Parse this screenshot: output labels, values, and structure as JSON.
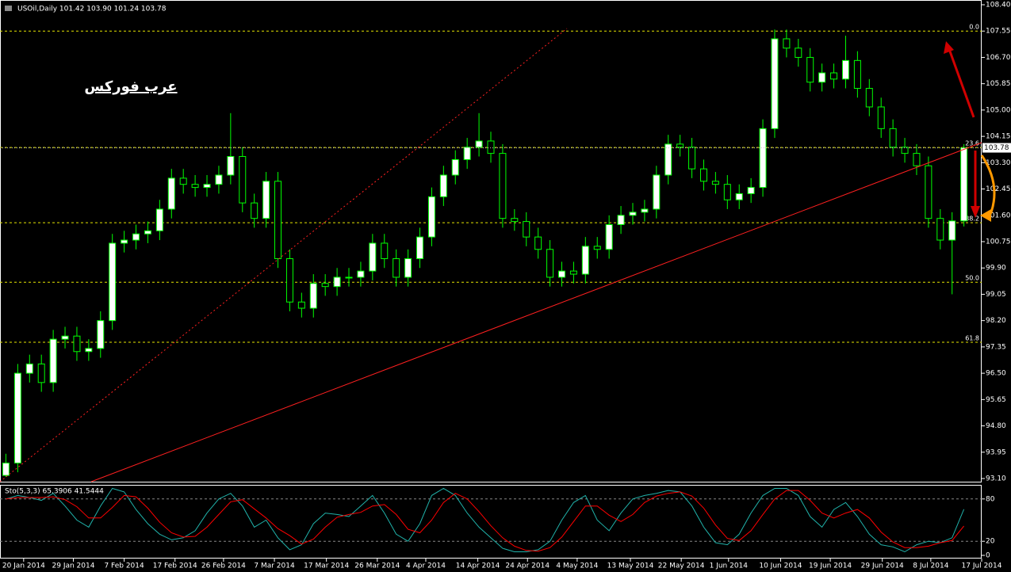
{
  "chart_data": [
    {
      "type": "candlestick",
      "title": "USOil,Daily  101.42 103.90 101.24 103.78",
      "watermark": "عرب فوركس",
      "xlim": [
        -0.5,
        82.5
      ],
      "xticks": [
        {
          "value": 1.5,
          "label": "20 Jan 2014"
        },
        {
          "value": 5.7,
          "label": "29 Jan 2014"
        },
        {
          "value": 10,
          "label": "7 Feb 2014"
        },
        {
          "value": 14.3,
          "label": "17 Feb 2014"
        },
        {
          "value": 18.4,
          "label": "26 Feb 2014"
        },
        {
          "value": 22.7,
          "label": "7 Mar 2014"
        },
        {
          "value": 27.1,
          "label": "17 Mar 2014"
        },
        {
          "value": 31.4,
          "label": "26 Mar 2014"
        },
        {
          "value": 35.5,
          "label": "4 Apr 2014"
        },
        {
          "value": 39.9,
          "label": "14 Apr 2014"
        },
        {
          "value": 44.1,
          "label": "24 Apr 2014"
        },
        {
          "value": 48.3,
          "label": "4 May 2014"
        },
        {
          "value": 52.8,
          "label": "13 May 2014"
        },
        {
          "value": 57.1,
          "label": "22 May 2014"
        },
        {
          "value": 61.1,
          "label": "1 Jun 2014"
        },
        {
          "value": 65.5,
          "label": "10 Jun 2014"
        },
        {
          "value": 69.7,
          "label": "19 Jun 2014"
        },
        {
          "value": 74.1,
          "label": "29 Jun 2014"
        },
        {
          "value": 78.2,
          "label": "8 Jul 2014"
        },
        {
          "value": 82.5,
          "label": "17 Jul 2014"
        }
      ],
      "ylim": [
        93.1,
        108.4
      ],
      "yticks": [
        {
          "value": 93.1,
          "label": "93.10"
        },
        93.95,
        {
          "value": 94.8,
          "label": "94.80"
        },
        95.65,
        {
          "value": 96.5,
          "label": "96.50"
        },
        97.35,
        {
          "value": 98.2,
          "label": "98.20"
        },
        99.05,
        {
          "value": 99.9,
          "label": "99.90"
        },
        100.75,
        {
          "value": 101.6,
          "label": "101.60"
        },
        102.45,
        {
          "value": 103.3,
          "label": "103.30"
        },
        104.15,
        {
          "value": 105,
          "label": "105.00"
        },
        105.85,
        {
          "value": 106.7,
          "label": "106.70"
        },
        107.55,
        {
          "value": 108.4,
          "label": "108.40"
        }
      ],
      "open": [
        93.2,
        93.6,
        96.5,
        96.8,
        96.2,
        97.6,
        97.7,
        97.2,
        97.3,
        98.2,
        100.7,
        100.8,
        101.0,
        101.1,
        101.8,
        102.8,
        102.6,
        102.5,
        102.6,
        102.9,
        103.5,
        102.0,
        101.5,
        102.7,
        100.2,
        98.8,
        98.6,
        99.4,
        99.3,
        99.6,
        99.6,
        99.8,
        100.7,
        100.2,
        99.6,
        100.2,
        100.9,
        102.2,
        102.9,
        103.4,
        103.8,
        104.0,
        103.6,
        101.5,
        101.4,
        100.9,
        100.5,
        99.6,
        99.8,
        99.7,
        100.6,
        100.5,
        101.3,
        101.6,
        101.7,
        101.8,
        102.9,
        103.9,
        103.8,
        103.1,
        102.7,
        102.6,
        102.1,
        102.3,
        102.5,
        104.4,
        107.3,
        107.0,
        106.7,
        105.9,
        106.2,
        106.0,
        106.6,
        105.7,
        105.1,
        104.4,
        103.8,
        103.6,
        103.2,
        101.5,
        100.8,
        101.42
      ],
      "high": [
        93.9,
        96.8,
        97.1,
        97.1,
        97.9,
        98.0,
        98.0,
        97.6,
        98.5,
        101.0,
        101.1,
        101.3,
        101.4,
        102.1,
        103.1,
        103.1,
        102.9,
        102.9,
        103.2,
        104.9,
        103.8,
        102.3,
        103.0,
        103.0,
        100.5,
        99.1,
        99.7,
        99.7,
        99.9,
        99.9,
        100.1,
        101.0,
        101.0,
        100.5,
        100.5,
        101.2,
        102.5,
        103.2,
        103.7,
        104.1,
        104.9,
        104.3,
        103.9,
        101.8,
        101.7,
        101.2,
        100.8,
        100.1,
        100.1,
        100.9,
        100.9,
        101.6,
        101.9,
        102.0,
        102.1,
        103.2,
        104.2,
        104.2,
        104.1,
        103.4,
        103.0,
        102.9,
        102.6,
        102.8,
        104.7,
        107.6,
        107.6,
        107.3,
        107.0,
        106.5,
        106.5,
        107.4,
        106.9,
        106.0,
        105.4,
        104.7,
        104.1,
        103.9,
        103.5,
        101.8,
        101.7,
        103.9
      ],
      "low": [
        93.15,
        93.3,
        96.2,
        95.9,
        95.9,
        97.3,
        96.9,
        96.9,
        97.0,
        97.9,
        100.4,
        100.5,
        100.7,
        100.8,
        101.5,
        102.3,
        102.2,
        102.2,
        102.3,
        102.6,
        101.7,
        101.2,
        101.2,
        99.9,
        98.5,
        98.3,
        98.3,
        99.0,
        99.0,
        99.3,
        99.3,
        99.5,
        99.9,
        99.3,
        99.3,
        99.9,
        100.6,
        101.9,
        102.6,
        103.1,
        103.5,
        103.3,
        101.2,
        101.1,
        100.6,
        100.2,
        99.3,
        99.3,
        99.4,
        99.4,
        100.2,
        100.2,
        101.0,
        101.3,
        101.4,
        101.5,
        102.6,
        103.5,
        102.8,
        102.4,
        102.3,
        101.8,
        101.8,
        102.0,
        102.2,
        104.1,
        106.7,
        106.4,
        105.6,
        105.6,
        105.7,
        105.7,
        105.4,
        104.8,
        104.1,
        103.5,
        103.3,
        102.9,
        101.2,
        100.5,
        99.05,
        101.24
      ],
      "close": [
        93.6,
        96.5,
        96.8,
        96.2,
        97.6,
        97.7,
        97.2,
        97.3,
        98.2,
        100.7,
        100.8,
        101.0,
        101.1,
        101.8,
        102.8,
        102.6,
        102.5,
        102.6,
        102.9,
        103.5,
        102.0,
        101.5,
        102.7,
        100.2,
        98.8,
        98.6,
        99.4,
        99.3,
        99.6,
        99.6,
        99.8,
        100.7,
        100.2,
        99.6,
        100.2,
        100.9,
        102.2,
        102.9,
        103.4,
        103.8,
        104.0,
        103.6,
        101.5,
        101.4,
        100.9,
        100.5,
        99.6,
        99.8,
        99.7,
        100.6,
        100.5,
        101.3,
        101.6,
        101.7,
        101.8,
        102.9,
        103.9,
        103.8,
        103.1,
        102.7,
        102.6,
        102.1,
        102.3,
        102.5,
        104.4,
        107.3,
        107.0,
        106.7,
        105.9,
        106.2,
        106.0,
        106.6,
        105.7,
        105.1,
        104.4,
        103.8,
        103.6,
        103.2,
        101.5,
        100.8,
        101.42,
        103.78
      ],
      "up_color": "#ffffff",
      "down_color": "#000000",
      "wick_color": "#00ff00",
      "fib_levels": [
        {
          "value": 107.55,
          "label": "0.0"
        },
        {
          "value": 103.79,
          "label": "23.6"
        },
        {
          "value": 101.36,
          "label": "38.2"
        },
        {
          "value": 99.44,
          "label": "50.0"
        },
        {
          "value": 97.5,
          "label": "61.8"
        }
      ],
      "fib_color": "#e6e600",
      "last_price": 103.78
    },
    {
      "type": "line",
      "title": "Sto(5,3,3) 65.3906 41.5444",
      "ylim": [
        0,
        100
      ],
      "yticks": [
        80,
        20,
        0
      ],
      "levels": [
        80,
        20
      ],
      "series": [
        {
          "color": "#20b2aa",
          "values": [
            80,
            85,
            82,
            78,
            88,
            70,
            50,
            40,
            70,
            95,
            90,
            65,
            45,
            30,
            22,
            25,
            35,
            60,
            80,
            88,
            70,
            40,
            50,
            25,
            8,
            15,
            45,
            60,
            58,
            55,
            70,
            85,
            60,
            30,
            20,
            45,
            85,
            95,
            85,
            60,
            40,
            25,
            10,
            5,
            5,
            8,
            20,
            50,
            75,
            85,
            50,
            35,
            60,
            80,
            85,
            88,
            92,
            90,
            70,
            40,
            18,
            15,
            30,
            60,
            85,
            95,
            95,
            85,
            55,
            40,
            65,
            75,
            55,
            30,
            15,
            12,
            5,
            15,
            20,
            18,
            25,
            65.3906
          ]
        },
        {
          "color": "#ff0000",
          "values": [
            80,
            82,
            82,
            82,
            83,
            79,
            69,
            53,
            53,
            68,
            85,
            83,
            67,
            47,
            32,
            26,
            27,
            40,
            58,
            76,
            79,
            66,
            53,
            38,
            28,
            16,
            23,
            40,
            54,
            58,
            61,
            70,
            72,
            58,
            37,
            32,
            50,
            75,
            88,
            80,
            62,
            42,
            25,
            13,
            7,
            6,
            11,
            26,
            48,
            70,
            70,
            57,
            48,
            58,
            75,
            84,
            88,
            90,
            84,
            67,
            43,
            24,
            21,
            35,
            58,
            80,
            92,
            92,
            78,
            60,
            53,
            60,
            65,
            53,
            33,
            19,
            11,
            11,
            13,
            18,
            21,
            41.5444
          ]
        }
      ]
    }
  ]
}
